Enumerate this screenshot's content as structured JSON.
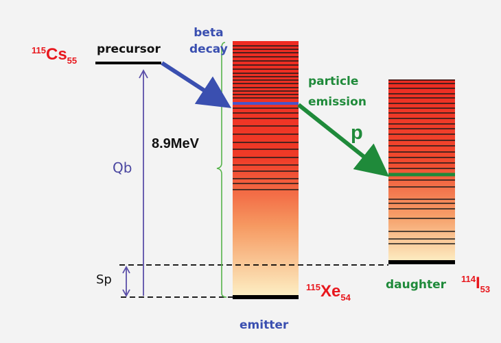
{
  "labels": {
    "precursor": "precursor",
    "beta_decay_line1": "beta",
    "beta_decay_line2": "decay",
    "particle_emission_line1": "particle",
    "particle_emission_line2": "emission",
    "proton": "p",
    "qb": "Qb",
    "sp": "Sp",
    "energy": "8.9MeV",
    "emitter": "emitter",
    "daughter": "daughter"
  },
  "nuclei": {
    "precursor": {
      "mass": "115",
      "symbol": "Cs",
      "z": "55"
    },
    "emitter": {
      "mass": "115",
      "symbol": "Xe",
      "z": "54"
    },
    "daughter": {
      "mass": "114",
      "symbol": "I",
      "z": "53"
    }
  },
  "colors": {
    "beta_arrow": "#3a4fb0",
    "particle_arrow": "#1f8a3a",
    "nucleus_label": "#e8171d",
    "bracket": "#55b34a",
    "qb_arrow": "#5a4ea8"
  }
}
